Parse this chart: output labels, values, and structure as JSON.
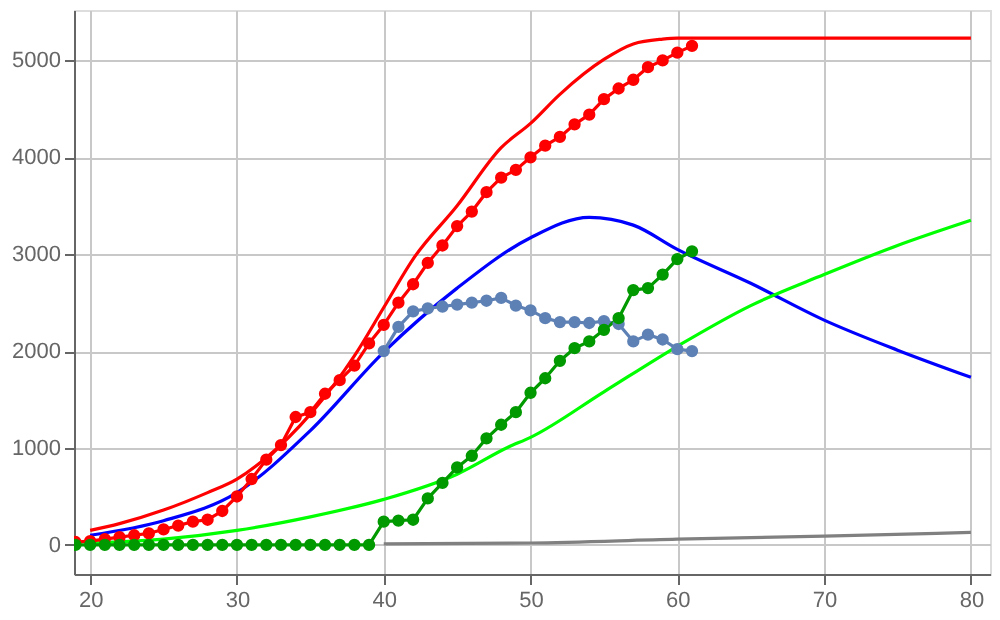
{
  "chart_data": {
    "type": "line",
    "xlim": [
      18.9,
      81.3
    ],
    "ylim": [
      -300,
      5520
    ],
    "xticks": [
      20,
      30,
      40,
      50,
      60,
      70,
      80
    ],
    "yticks": [
      0,
      1000,
      2000,
      3000,
      4000,
      5000
    ],
    "grid": true,
    "legend": false,
    "series": [
      {
        "marker": "none",
        "color": "#ff0000",
        "x": [
          20,
          22,
          25,
          28,
          30,
          32,
          35,
          38,
          40,
          42,
          45,
          48,
          50,
          52,
          55,
          57,
          59,
          60,
          80
        ],
        "values": [
          150,
          220,
          360,
          540,
          680,
          900,
          1350,
          1950,
          2450,
          2950,
          3500,
          4100,
          4350,
          4650,
          5010,
          5170,
          5220,
          5230,
          5230
        ]
      },
      {
        "marker": "none",
        "color": "#0000ff",
        "x": [
          20,
          25,
          30,
          35,
          40,
          45,
          50,
          54,
          57,
          60,
          65,
          70,
          75,
          80
        ],
        "values": [
          100,
          250,
          540,
          1180,
          1990,
          2650,
          3170,
          3380,
          3300,
          3050,
          2700,
          2320,
          2010,
          1730
        ]
      },
      {
        "marker": "none",
        "color": "#00ff00",
        "x": [
          20,
          25,
          30,
          35,
          40,
          45,
          48.5,
          50,
          55,
          60,
          65,
          70,
          75,
          80
        ],
        "values": [
          20,
          60,
          150,
          290,
          470,
          730,
          1010,
          1110,
          1580,
          2050,
          2470,
          2790,
          3090,
          3350
        ]
      },
      {
        "marker": "none",
        "color": "#808080",
        "x": [
          40,
          50,
          60,
          70,
          80
        ],
        "values": [
          10,
          20,
          60,
          90,
          130
        ]
      },
      {
        "marker": "circle",
        "color": "#ff0000",
        "x": [
          19,
          20,
          21,
          22,
          23,
          24,
          25,
          26,
          27,
          28,
          29,
          30,
          31,
          32,
          33,
          34,
          35,
          36,
          37,
          38,
          39,
          40,
          41,
          42,
          43,
          44,
          45,
          46,
          47,
          48,
          49,
          50,
          51,
          52,
          53,
          54,
          55,
          56,
          57,
          58,
          59,
          60,
          61
        ],
        "values": [
          30,
          40,
          60,
          80,
          100,
          120,
          160,
          200,
          240,
          260,
          350,
          500,
          680,
          880,
          1030,
          1320,
          1370,
          1560,
          1700,
          1850,
          2080,
          2270,
          2500,
          2690,
          2910,
          3090,
          3290,
          3440,
          3640,
          3790,
          3870,
          4000,
          4120,
          4210,
          4340,
          4440,
          4600,
          4710,
          4800,
          4930,
          5000,
          5080,
          5150
        ]
      },
      {
        "marker": "circle",
        "color": "#5e81b5",
        "x": [
          40,
          41,
          42,
          43,
          44,
          45,
          46,
          47,
          48,
          49,
          50,
          51,
          52,
          53,
          54,
          55,
          56,
          57,
          58,
          59,
          60,
          61
        ],
        "values": [
          2000,
          2250,
          2410,
          2440,
          2460,
          2480,
          2500,
          2520,
          2550,
          2470,
          2420,
          2340,
          2300,
          2300,
          2290,
          2310,
          2280,
          2100,
          2170,
          2120,
          2020,
          2000
        ]
      },
      {
        "marker": "circle",
        "color": "#009900",
        "x": [
          19,
          20,
          21,
          22,
          23,
          24,
          25,
          26,
          27,
          28,
          29,
          30,
          31,
          32,
          33,
          34,
          35,
          36,
          37,
          38,
          39,
          40,
          41,
          42,
          43,
          44,
          45,
          46,
          47,
          48,
          49,
          50,
          51,
          52,
          53,
          54,
          55,
          56,
          57,
          58,
          59,
          60,
          61
        ],
        "values": [
          0,
          0,
          0,
          0,
          0,
          0,
          0,
          0,
          0,
          0,
          0,
          0,
          0,
          0,
          0,
          0,
          0,
          0,
          0,
          0,
          0,
          240,
          250,
          260,
          480,
          640,
          800,
          920,
          1100,
          1240,
          1370,
          1570,
          1720,
          1900,
          2030,
          2100,
          2220,
          2340,
          2630,
          2650,
          2790,
          2950,
          3030
        ]
      }
    ]
  }
}
